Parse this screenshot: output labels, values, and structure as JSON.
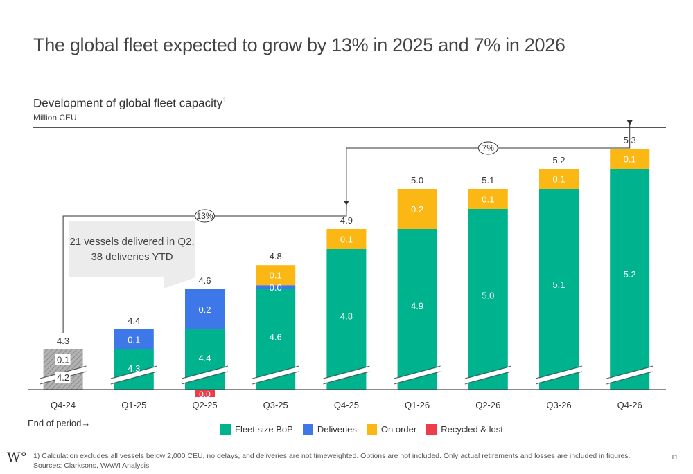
{
  "title": "The global fleet expected to grow by 13% in 2025 and 7% in 2026",
  "subtitle": "Development of global fleet capacity",
  "subtitle_sup": "1",
  "unit": "Million CEU",
  "callout": {
    "line1": "21 vessels delivered in Q2,",
    "line2": "38 deliveries YTD"
  },
  "end_of_period": "End of period→",
  "footnote": {
    "line1": "1) Calculation excludes all vessels below 2,000 CEU, no delays, and deliveries are not timeweighted. Options are not included. Only actual retirements and losses are included in figures.",
    "line2": "Sources: Clarksons, WAWI Analysis"
  },
  "logo": "W°",
  "page_number": "11",
  "colors": {
    "fleet": "#00b38f",
    "deliveries": "#3e78e8",
    "on_order": "#fbb714",
    "recycled": "#ee3d4a",
    "actual_total": "#a6a6a6"
  },
  "chart_data": {
    "type": "bar",
    "stacked": true,
    "categories": [
      "Q4-24",
      "Q1-25",
      "Q2-25",
      "Q3-25",
      "Q4-25",
      "Q1-26",
      "Q2-26",
      "Q3-26",
      "Q4-26"
    ],
    "totals": [
      "4.3",
      "4.4",
      "4.6",
      "4.8",
      "4.9",
      "5.0",
      "5.1",
      "5.2",
      "5.3"
    ],
    "axis_break": true,
    "series": [
      {
        "name": "Fleet size BoP",
        "key": "fleet",
        "values": [
          4.2,
          4.3,
          4.4,
          4.6,
          4.8,
          4.9,
          5.0,
          5.1,
          5.2
        ],
        "labels": [
          "4.2",
          "4.3",
          "4.4",
          "4.6",
          "4.8",
          "4.9",
          "5.0",
          "5.1",
          "5.2"
        ]
      },
      {
        "name": "Deliveries",
        "key": "deliveries",
        "values": [
          0.1,
          0.1,
          0.2,
          0.02,
          0,
          0,
          0,
          0,
          0
        ],
        "labels": [
          "0.1",
          "0.1",
          "0.2",
          "0.0",
          "",
          "",
          "",
          "",
          ""
        ]
      },
      {
        "name": "On order",
        "key": "on_order",
        "values": [
          0,
          0,
          0,
          0.1,
          0.1,
          0.2,
          0.1,
          0.1,
          0.1
        ],
        "labels": [
          "",
          "",
          "",
          "0.1",
          "0.1",
          "0.2",
          "0.1",
          "0.1",
          "0.1"
        ]
      },
      {
        "name": "Recycled & lost",
        "key": "recycled",
        "values": [
          0,
          0,
          -0.01,
          0,
          0,
          0,
          0,
          0,
          0
        ],
        "labels": [
          "",
          "",
          "0.0",
          "",
          "",
          "",
          "",
          "",
          ""
        ]
      }
    ],
    "growth_annotations": [
      {
        "label": "13%",
        "from": "Q4-24",
        "to": "Q4-25"
      },
      {
        "label": "7%",
        "from": "Q4-25",
        "to": "Q4-26"
      }
    ]
  }
}
